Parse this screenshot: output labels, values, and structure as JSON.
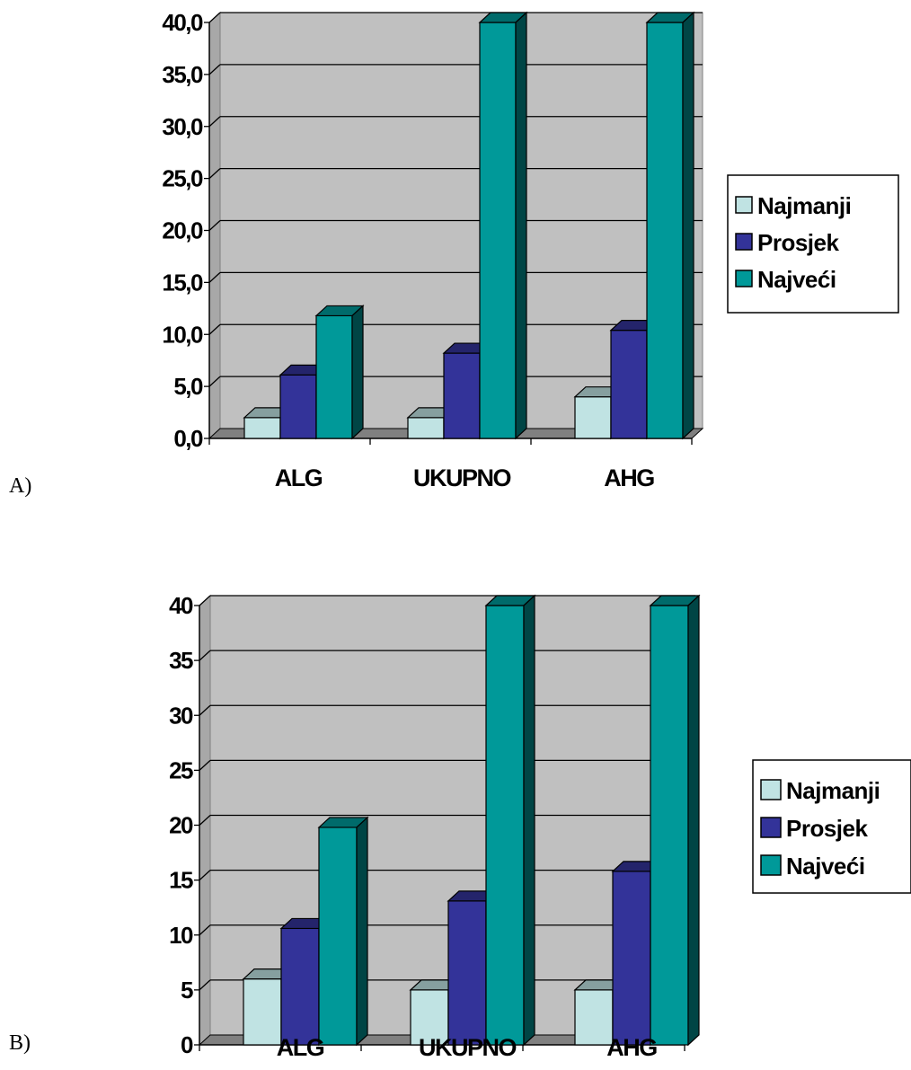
{
  "colors": {
    "series": [
      "#c0e3e3",
      "#333399",
      "#009999"
    ],
    "plot_background": "#c0c0c0"
  },
  "chart_data": [
    {
      "panel_label": "A)",
      "type": "bar",
      "categories": [
        "ALG",
        "UKUPNO",
        "AHG"
      ],
      "series": [
        {
          "name": "Najmanji",
          "values": [
            2.0,
            2.0,
            4.0
          ]
        },
        {
          "name": "Prosjek",
          "values": [
            6.1,
            8.2,
            10.4
          ]
        },
        {
          "name": "Najveći",
          "values": [
            11.8,
            40.0,
            40.0
          ]
        }
      ],
      "yticks": [
        "0,0",
        "5,0",
        "10,0",
        "15,0",
        "20,0",
        "25,0",
        "30,0",
        "35,0",
        "40,0"
      ],
      "ylim": [
        0,
        40
      ],
      "grid": true,
      "legend": "right",
      "style": "3d"
    },
    {
      "panel_label": "B)",
      "type": "bar",
      "categories": [
        "ALG",
        "UKUPNO",
        "AHG"
      ],
      "series": [
        {
          "name": "Najmanji",
          "values": [
            6,
            5,
            5
          ]
        },
        {
          "name": "Prosjek",
          "values": [
            10.6,
            13.1,
            15.8
          ]
        },
        {
          "name": "Najveći",
          "values": [
            19.8,
            40,
            40
          ]
        }
      ],
      "yticks": [
        "0",
        "5",
        "10",
        "15",
        "20",
        "25",
        "30",
        "35",
        "40"
      ],
      "ylim": [
        0,
        40
      ],
      "grid": true,
      "legend": "right",
      "style": "3d"
    }
  ]
}
